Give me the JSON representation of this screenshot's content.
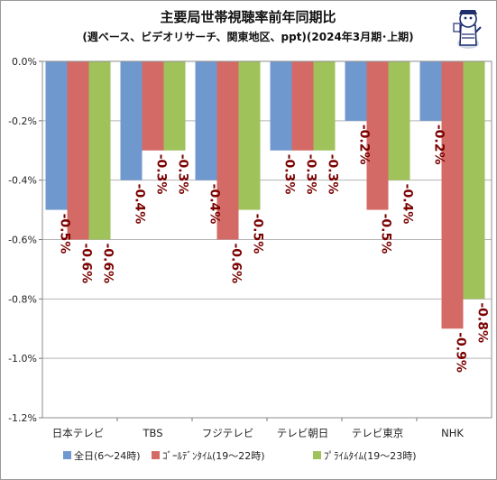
{
  "chart_data": {
    "type": "bar",
    "title": "主要局世帯視聴率前年同期比",
    "subtitle": "(週ベース、ビデオリサーチ、関東地区、ppt)(2024年3月期･上期)",
    "categories": [
      "日本テレビ",
      "TBS",
      "フジテレビ",
      "テレビ朝日",
      "テレビ東京",
      "NHK"
    ],
    "series": [
      {
        "name": "全日(6～24時)",
        "color": "#6f98cf",
        "values": [
          -0.5,
          -0.4,
          -0.4,
          -0.3,
          -0.2,
          -0.2
        ]
      },
      {
        "name": "ｺﾞｰﾙﾃﾞﾝﾀｲﾑ(19～22時)",
        "color": "#d46a66",
        "values": [
          -0.6,
          -0.3,
          -0.6,
          -0.3,
          -0.5,
          -0.9
        ]
      },
      {
        "name": "ﾌﾟﾗｲﾑﾀｲﾑ(19～23時)",
        "color": "#9fc25a",
        "values": [
          -0.6,
          -0.3,
          -0.5,
          -0.3,
          -0.4,
          -0.8
        ]
      }
    ],
    "data_labels": [
      [
        "-0.5%",
        "-0.4%",
        "-0.4%",
        "-0.3%",
        "-0.2%",
        "-0.2%"
      ],
      [
        "-0.6%",
        "-0.3%",
        "-0.6%",
        "-0.3%",
        "-0.5%",
        "-0.9%"
      ],
      [
        "-0.6%",
        "-0.3%",
        "-0.5%",
        "-0.3%",
        "-0.4%",
        "-0.8%"
      ]
    ],
    "ylim": [
      -1.2,
      0.0
    ],
    "yticks": [
      0.0,
      -0.2,
      -0.4,
      -0.6,
      -0.8,
      -1.0,
      -1.2
    ],
    "ytick_labels": [
      "0.0%",
      "-0.2%",
      "-0.4%",
      "-0.6%",
      "-0.8%",
      "-1.0%",
      "-1.2%"
    ],
    "grid": true,
    "legend_position": "bottom"
  }
}
